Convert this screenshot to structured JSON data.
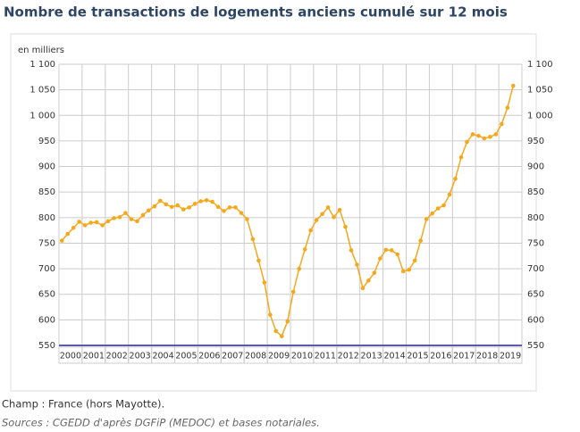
{
  "chart_data": {
    "type": "line",
    "title": "Nombre de transactions de logements anciens cumulé sur 12 mois",
    "y_label": "en milliers",
    "categories": [
      "2000",
      null,
      null,
      null,
      "2001",
      null,
      null,
      null,
      "2002",
      null,
      null,
      null,
      "2003",
      null,
      null,
      null,
      "2004",
      null,
      null,
      null,
      "2005",
      null,
      null,
      null,
      "2006",
      null,
      null,
      null,
      "2007",
      null,
      null,
      null,
      "2008",
      null,
      null,
      null,
      "2009",
      null,
      null,
      null,
      "2010",
      null,
      null,
      null,
      "2011",
      null,
      null,
      null,
      "2012",
      null,
      null,
      null,
      "2013",
      null,
      null,
      null,
      "2014",
      null,
      null,
      null,
      "2015",
      null,
      null,
      null,
      "2016",
      null,
      null,
      null,
      "2017",
      null,
      null,
      null,
      "2018",
      null,
      null,
      null,
      "2019",
      null,
      null
    ],
    "series": [
      {
        "color": "#f5a81c",
        "values": [
          755,
          768,
          780,
          792,
          785,
          790,
          791,
          785,
          793,
          799,
          801,
          809,
          797,
          793,
          805,
          814,
          822,
          833,
          826,
          821,
          824,
          816,
          820,
          827,
          832,
          834,
          831,
          821,
          813,
          820,
          820,
          809,
          797,
          758,
          716,
          673,
          610,
          578,
          568,
          597,
          655,
          700,
          738,
          775,
          795,
          807,
          820,
          801,
          815,
          782,
          736,
          708,
          662,
          677,
          692,
          720,
          737,
          736,
          728,
          695,
          698,
          716,
          755,
          797,
          808,
          818,
          824,
          845,
          876,
          918,
          948,
          963,
          960,
          955,
          958,
          963,
          983,
          1015,
          1058
        ]
      }
    ],
    "ylim": [
      550,
      1100
    ],
    "yticks": [
      550,
      600,
      650,
      700,
      750,
      800,
      850,
      900,
      950,
      {
        "value": 1000,
        "label": "1 000"
      },
      {
        "value": 1050,
        "label": "1 050"
      },
      {
        "value": 1100,
        "label": "1 100"
      }
    ],
    "grid": true,
    "notes": [
      "Champ : France (hors Mayotte).",
      "Sources : CGEDD d'après DGFiP (MEDOC) et bases notariales."
    ]
  }
}
